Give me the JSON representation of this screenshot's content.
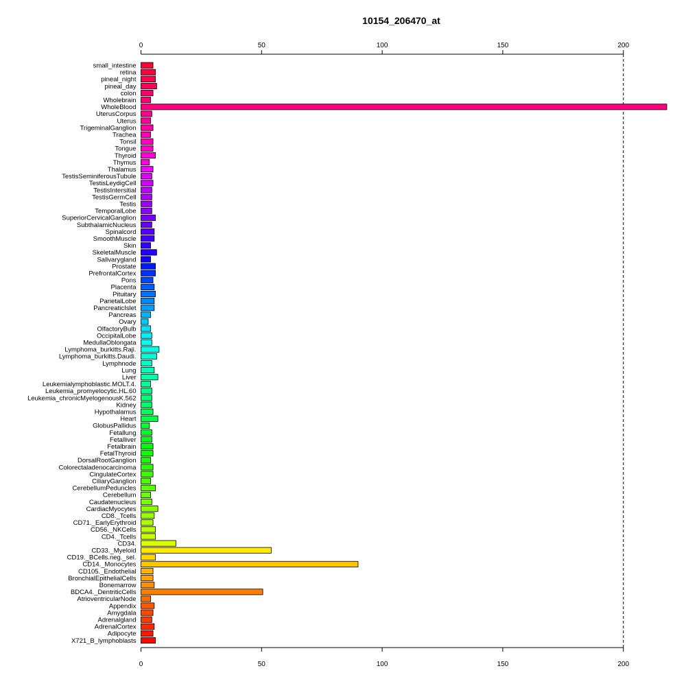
{
  "chart_data": {
    "type": "bar",
    "orientation": "horizontal",
    "title": "10154_206470_at",
    "xlabel": "",
    "ylabel": "",
    "xlim": [
      0,
      218
    ],
    "x_ticks": [
      0,
      50,
      100,
      150,
      200
    ],
    "reference_line": {
      "value": 200,
      "style": "dashed"
    },
    "axes_positions": [
      "top",
      "bottom"
    ],
    "grid": false,
    "categories": [
      "small_intestine",
      "retina",
      "pineal_night",
      "pineal_day",
      "colon",
      "Wholebrain",
      "WholeBlood",
      "UterusCorpus",
      "Uterus",
      "TrigeminalGanglion",
      "Trachea",
      "Tonsil",
      "Tongue",
      "Thyroid",
      "Thymus",
      "Thalamus",
      "TestisSeminiferousTubule",
      "TestisLeydigCell",
      "TestisIntersitial",
      "TestisGermCell",
      "Testis",
      "TemporalLobe",
      "SuperiorCervicalGanglion",
      "SubthalamicNucleus",
      "Spinalcord",
      "SmoothMuscle",
      "Skin",
      "SkeletalMuscle",
      "Salivarygland",
      "Prostate",
      "PrefrontalCortex",
      "Pons",
      "Placenta",
      "Pituitary",
      "ParietalLobe",
      "PancreaticIslet",
      "Pancreas",
      "Ovary",
      "OlfactoryBulb",
      "OccipitalLobe",
      "MedullaOblongata",
      "Lymphoma_burkitts.Raji.",
      "Lymphoma_burkitts.Daudi.",
      "Lymphnode",
      "Lung",
      "Liver",
      "Leukemialymphoblastic.MOLT.4.",
      "Leukemia_promyelocytic.HL.60",
      "Leukemia_chronicMyelogenousK.562",
      "Kidney",
      "Hypothalamus",
      "Heart",
      "GlobusPallidus",
      "Fetallung",
      "Fetalliver",
      "Fetalbrain",
      "FetalThyroid",
      "DorsalRootGanglion",
      "Colorectaladenocarcinoma",
      "CingulateCortex",
      "CiliaryGanglion",
      "CerebellumPeduncles",
      "Cerebellum",
      "Caudatenucleus",
      "CardiacMyocytes",
      "CD8._Tcells",
      "CD71._EarlyErythroid",
      "CD56._NKCells",
      "CD4._Tcells",
      "CD34.",
      "CD33._Myeloid",
      "CD19._BCells.neg._sel.",
      "CD14._Monocytes",
      "CD105._Endothelial",
      "BronchialEpithelialCells",
      "Bonemarrow",
      "BDCA4._DentriticCells",
      "AtrioventricularNode",
      "Appendix",
      "Amygdala",
      "Adrenalgland",
      "AdrenalCortex",
      "Adipocyte",
      "X721_B_lymphoblasts"
    ],
    "values": [
      5.0,
      6.0,
      6.0,
      6.5,
      5.0,
      4.0,
      218.0,
      4.5,
      4.0,
      5.0,
      4.0,
      5.0,
      5.0,
      6.0,
      3.5,
      5.0,
      4.5,
      5.0,
      4.5,
      4.5,
      4.5,
      4.5,
      6.0,
      4.5,
      5.5,
      5.5,
      4.0,
      6.5,
      4.0,
      6.0,
      6.0,
      5.0,
      5.5,
      6.0,
      5.5,
      5.5,
      4.0,
      3.0,
      4.0,
      4.5,
      4.5,
      7.5,
      6.5,
      4.5,
      5.5,
      7.0,
      4.0,
      4.5,
      4.5,
      4.5,
      5.0,
      7.0,
      3.5,
      4.5,
      4.5,
      5.0,
      5.0,
      4.0,
      5.0,
      5.0,
      4.0,
      6.0,
      4.0,
      4.5,
      7.0,
      5.5,
      5.0,
      6.0,
      6.0,
      14.5,
      54.0,
      6.0,
      90.0,
      5.0,
      5.0,
      5.5,
      50.5,
      4.0,
      5.5,
      5.0,
      4.5,
      5.5,
      5.0,
      6.0
    ],
    "colors": [
      "#ff0033",
      "#ff0040",
      "#ff004d",
      "#ff0059",
      "#ff0066",
      "#ff0073",
      "#ff0080",
      "#ff008c",
      "#ff0099",
      "#ff00a6",
      "#ff00b2",
      "#ff00bf",
      "#ff00cc",
      "#ff00d9",
      "#ff00e6",
      "#f200ff",
      "#e100ff",
      "#d000ff",
      "#bf00ff",
      "#ae00ff",
      "#9d00ff",
      "#8c00ff",
      "#7a00ff",
      "#6800ff",
      "#5600ff",
      "#4400ff",
      "#3300ff",
      "#2100ff",
      "#0f00ff",
      "#001aff",
      "#0030ff",
      "#0046ff",
      "#005cff",
      "#0072ff",
      "#0088ff",
      "#009eff",
      "#00b4ff",
      "#00caff",
      "#00e0ff",
      "#00f0ff",
      "#00fff6",
      "#00ffe6",
      "#00ffd6",
      "#00ffc6",
      "#00ffb6",
      "#00ffa6",
      "#00ff96",
      "#00ff86",
      "#00ff76",
      "#00ff66",
      "#00ff56",
      "#00ff46",
      "#00ff36",
      "#00ff26",
      "#00ff16",
      "#00ff06",
      "#0aff00",
      "#1aff00",
      "#2aff00",
      "#3aff00",
      "#4aff00",
      "#5aff00",
      "#6aff00",
      "#7aff00",
      "#8aff00",
      "#9aff00",
      "#aaff00",
      "#baff00",
      "#caff00",
      "#daff00",
      "#ffea00",
      "#ffd800",
      "#ffc600",
      "#ffb400",
      "#ffa200",
      "#ff9000",
      "#ff7e00",
      "#ff6c00",
      "#ff5a00",
      "#ff4800",
      "#ff3800",
      "#ff2800",
      "#ff1800",
      "#ff0800"
    ]
  }
}
